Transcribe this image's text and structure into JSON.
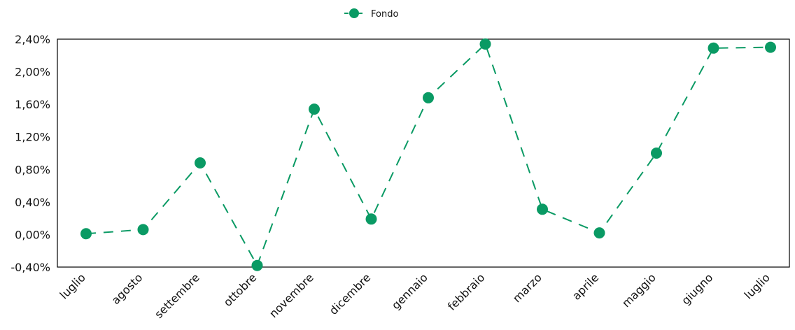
{
  "chart_data": {
    "type": "line",
    "title": "",
    "xlabel": "",
    "ylabel": "",
    "categories": [
      "luglio",
      "agosto",
      "settembre",
      "ottobre",
      "novembre",
      "dicembre",
      "gennaio",
      "febbraio",
      "marzo",
      "aprile",
      "maggio",
      "giugno",
      "luglio"
    ],
    "y_tick_labels": [
      "-0,40%",
      "0,00%",
      "0,40%",
      "0,80%",
      "1,20%",
      "1,60%",
      "2,00%",
      "2,40%"
    ],
    "y_ticks": [
      -0.4,
      0.0,
      0.4,
      0.8,
      1.2,
      1.6,
      2.0,
      2.4
    ],
    "ylim": [
      -0.4,
      2.4
    ],
    "grid": false,
    "legend_position": "top-center",
    "series": [
      {
        "name": "Fondo",
        "values": [
          0.01,
          0.06,
          0.88,
          -0.38,
          1.54,
          0.19,
          1.68,
          2.34,
          0.31,
          0.02,
          1.0,
          2.29,
          2.3
        ],
        "color": "#0a9a64",
        "line_style": "dashed",
        "marker": "circle"
      }
    ]
  }
}
